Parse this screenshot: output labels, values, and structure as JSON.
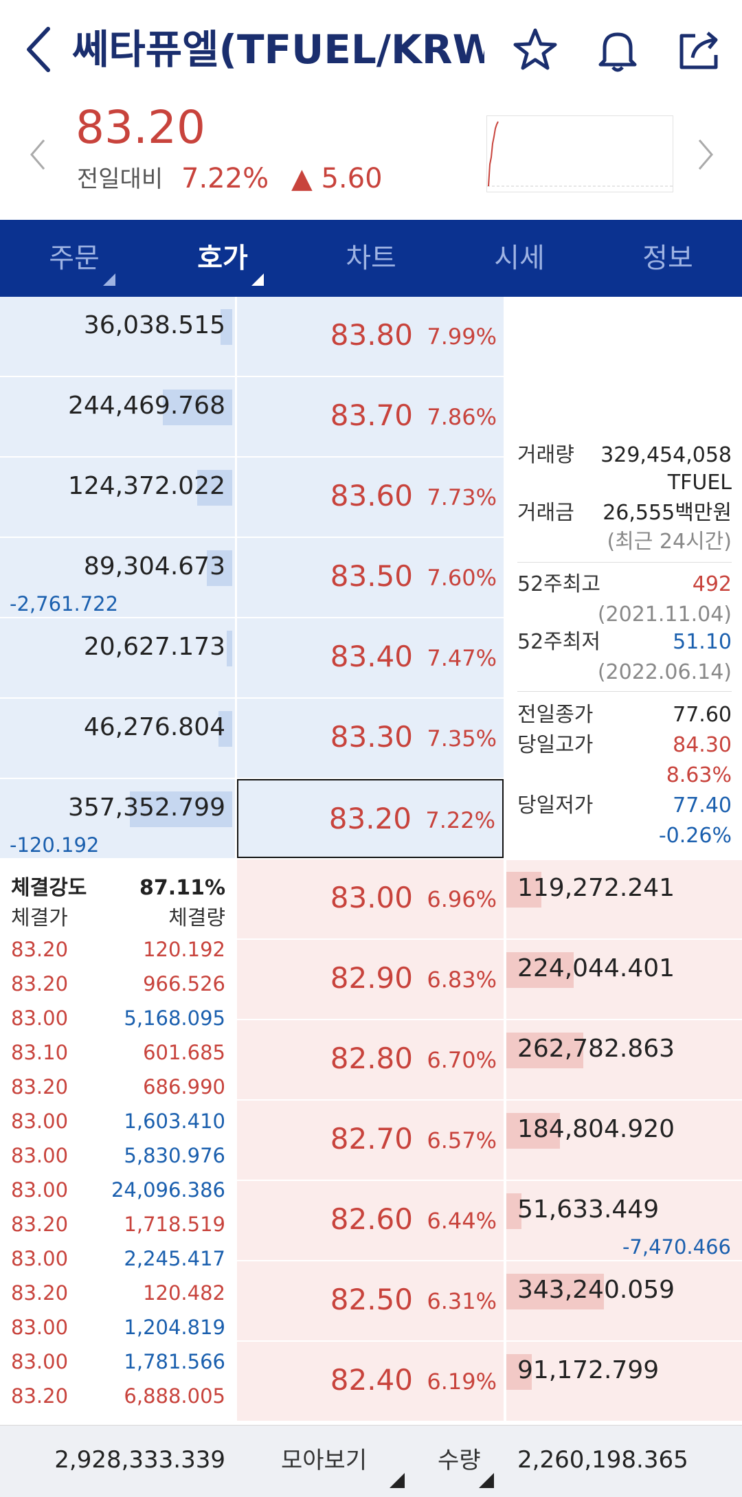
{
  "header": {
    "title": "쎄타퓨엘(TFUEL/KRW...",
    "back_icon": "chevron-left-icon",
    "icons": [
      "star-icon",
      "bell-icon",
      "share-icon"
    ]
  },
  "ticker": {
    "price": "83.20",
    "change_label": "전일대비",
    "change_pct": "7.22%",
    "change_amount": "▲ 5.60"
  },
  "tabs": [
    {
      "label": "주문",
      "active": false
    },
    {
      "label": "호가",
      "active": true
    },
    {
      "label": "차트",
      "active": false
    },
    {
      "label": "시세",
      "active": false
    },
    {
      "label": "정보",
      "active": false
    }
  ],
  "asks": [
    {
      "qty": "36,038.515",
      "price": "83.80",
      "pct": "7.99%",
      "delta": "",
      "bar_fraction": 0.05
    },
    {
      "qty": "244,469.768",
      "price": "83.70",
      "pct": "7.86%",
      "delta": "",
      "bar_fraction": 0.3
    },
    {
      "qty": "124,372.022",
      "price": "83.60",
      "pct": "7.73%",
      "delta": "",
      "bar_fraction": 0.15
    },
    {
      "qty": "89,304.673",
      "price": "83.50",
      "pct": "7.60%",
      "delta": "-2,761.722",
      "bar_fraction": 0.11
    },
    {
      "qty": "20,627.173",
      "price": "83.40",
      "pct": "7.47%",
      "delta": "",
      "bar_fraction": 0.025
    },
    {
      "qty": "46,276.804",
      "price": "83.30",
      "pct": "7.35%",
      "delta": "",
      "bar_fraction": 0.06
    },
    {
      "qty": "357,352.799",
      "price": "83.20",
      "pct": "7.22%",
      "delta": "-120.192",
      "bar_fraction": 0.44
    }
  ],
  "bids": [
    {
      "qty": "119,272.241",
      "price": "83.00",
      "pct": "6.96%",
      "delta": "",
      "bar_fraction": 0.15
    },
    {
      "qty": "224,044.401",
      "price": "82.90",
      "pct": "6.83%",
      "delta": "",
      "bar_fraction": 0.29
    },
    {
      "qty": "262,782.863",
      "price": "82.80",
      "pct": "6.70%",
      "delta": "",
      "bar_fraction": 0.33
    },
    {
      "qty": "184,804.920",
      "price": "82.70",
      "pct": "6.57%",
      "delta": "",
      "bar_fraction": 0.23
    },
    {
      "qty": "51,633.449",
      "price": "82.60",
      "pct": "6.44%",
      "delta": "-7,470.466",
      "bar_fraction": 0.065
    },
    {
      "qty": "343,240.059",
      "price": "82.50",
      "pct": "6.31%",
      "delta": "",
      "bar_fraction": 0.42
    },
    {
      "qty": "91,172.799",
      "price": "82.40",
      "pct": "6.19%",
      "delta": "",
      "bar_fraction": 0.11
    }
  ],
  "info": {
    "volume_label": "거래량",
    "volume_value": "329,454,058",
    "volume_unit": "TFUEL",
    "amount_label": "거래금",
    "amount_value": "26,555백만원",
    "period_note": "(최근 24시간)",
    "high52_label": "52주최고",
    "high52_value": "492",
    "high52_date": "(2021.11.04)",
    "low52_label": "52주최저",
    "low52_value": "51.10",
    "low52_date": "(2022.06.14)",
    "prev_close_label": "전일종가",
    "prev_close_value": "77.60",
    "day_high_label": "당일고가",
    "day_high_value": "84.30",
    "day_high_pct": "8.63%",
    "day_low_label": "당일저가",
    "day_low_value": "77.40",
    "day_low_pct": "-0.26%"
  },
  "trades": {
    "strength_label": "체결강도",
    "strength_value": "87.11%",
    "price_header": "체결가",
    "qty_header": "체결량",
    "rows": [
      {
        "price": "83.20",
        "qty": "120.192",
        "side": "buy"
      },
      {
        "price": "83.20",
        "qty": "966.526",
        "side": "buy"
      },
      {
        "price": "83.00",
        "qty": "5,168.095",
        "side": "sell"
      },
      {
        "price": "83.10",
        "qty": "601.685",
        "side": "buy"
      },
      {
        "price": "83.20",
        "qty": "686.990",
        "side": "buy"
      },
      {
        "price": "83.00",
        "qty": "1,603.410",
        "side": "sell"
      },
      {
        "price": "83.00",
        "qty": "5,830.976",
        "side": "sell"
      },
      {
        "price": "83.00",
        "qty": "24,096.386",
        "side": "sell"
      },
      {
        "price": "83.20",
        "qty": "1,718.519",
        "side": "buy"
      },
      {
        "price": "83.00",
        "qty": "2,245.417",
        "side": "sell"
      },
      {
        "price": "83.20",
        "qty": "120.482",
        "side": "buy"
      },
      {
        "price": "83.00",
        "qty": "1,204.819",
        "side": "sell"
      },
      {
        "price": "83.00",
        "qty": "1,781.566",
        "side": "sell"
      },
      {
        "price": "83.20",
        "qty": "6,888.005",
        "side": "buy"
      }
    ]
  },
  "footer": {
    "ask_total": "2,928,333.339",
    "view_button": "모아보기",
    "qty_button": "수량",
    "bid_total": "2,260,198.365"
  },
  "colors": {
    "up": "#c8433c",
    "down": "#1a5fae",
    "tab_bg": "#0b3290"
  }
}
